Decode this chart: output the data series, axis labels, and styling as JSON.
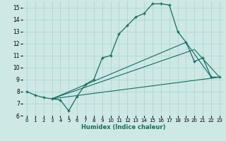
{
  "xlabel": "Humidex (Indice chaleur)",
  "xlim": [
    -0.5,
    23.5
  ],
  "ylim": [
    6,
    15.5
  ],
  "yticks": [
    6,
    7,
    8,
    9,
    10,
    11,
    12,
    13,
    14,
    15
  ],
  "xticks": [
    0,
    1,
    2,
    3,
    4,
    5,
    6,
    7,
    8,
    9,
    10,
    11,
    12,
    13,
    14,
    15,
    16,
    17,
    18,
    19,
    20,
    21,
    22,
    23
  ],
  "bg_color": "#cde8e5",
  "grid_color": "#b0d8d4",
  "line_color": "#1a6b60",
  "main_line": {
    "x": [
      0,
      1,
      2,
      3,
      4,
      5,
      6,
      7,
      8,
      9,
      10,
      11,
      12,
      13,
      14,
      15,
      16,
      17,
      18,
      19,
      20,
      21,
      22,
      23
    ],
    "y": [
      8.0,
      7.7,
      7.5,
      7.4,
      7.3,
      6.4,
      7.6,
      8.6,
      9.0,
      10.8,
      11.0,
      12.8,
      13.5,
      14.2,
      14.5,
      15.3,
      15.3,
      15.2,
      13.0,
      12.1,
      10.5,
      10.8,
      9.2,
      9.2
    ]
  },
  "straight_lines": [
    {
      "x": [
        3,
        23
      ],
      "y": [
        7.4,
        9.2
      ]
    },
    {
      "x": [
        3,
        20,
        23
      ],
      "y": [
        7.4,
        11.5,
        9.2
      ]
    },
    {
      "x": [
        3,
        19,
        22
      ],
      "y": [
        7.4,
        12.1,
        9.2
      ]
    }
  ]
}
